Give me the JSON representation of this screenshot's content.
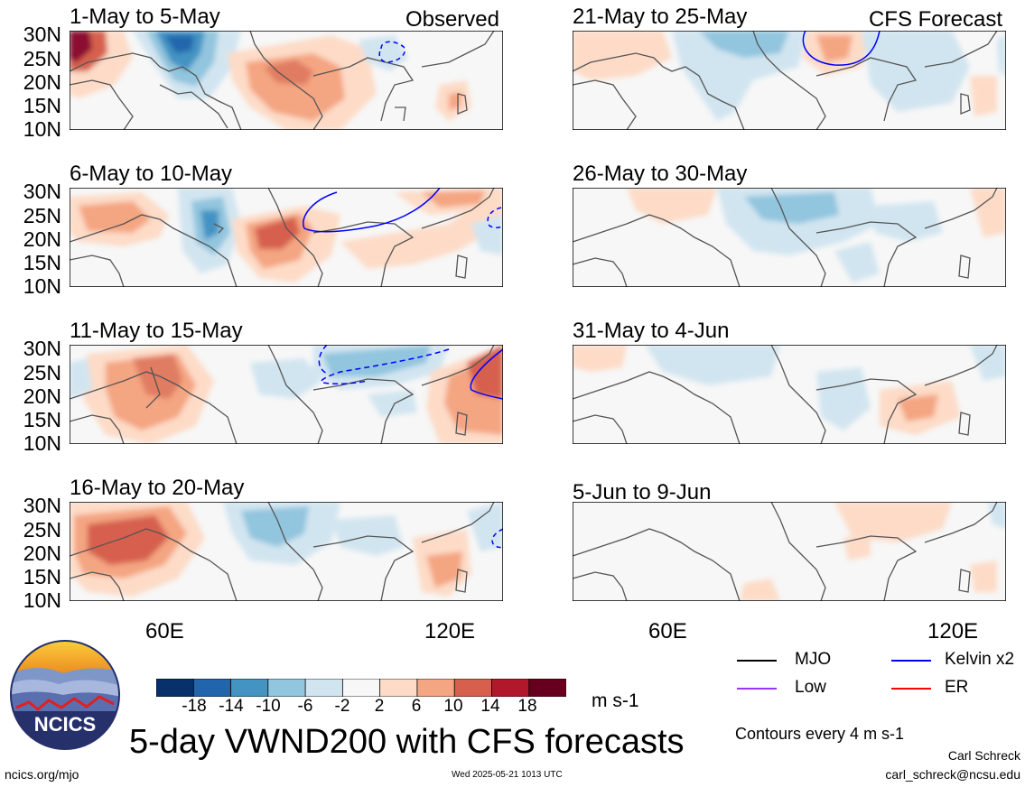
{
  "panels": {
    "left": [
      {
        "title": "1-May to 5-May",
        "label": "Observed"
      },
      {
        "title": "6-May to 10-May",
        "label": ""
      },
      {
        "title": "11-May to 15-May",
        "label": ""
      },
      {
        "title": "16-May to 20-May",
        "label": ""
      }
    ],
    "right": [
      {
        "title": "21-May to 25-May",
        "label": "CFS Forecast"
      },
      {
        "title": "26-May to 30-May",
        "label": ""
      },
      {
        "title": "31-May to 4-Jun",
        "label": ""
      },
      {
        "title": "5-Jun to 9-Jun",
        "label": ""
      }
    ]
  },
  "lat_labels": [
    "30N",
    "25N",
    "20N",
    "15N",
    "10N"
  ],
  "lon_labels": [
    "60E",
    "120E"
  ],
  "colorbar": {
    "colors": [
      "#08306b",
      "#2166ac",
      "#4393c3",
      "#92c5de",
      "#d1e5f0",
      "#f7f7f7",
      "#fddbc7",
      "#f4a582",
      "#d6604d",
      "#b2182b",
      "#67001f"
    ],
    "labels": [
      "-18",
      "-14",
      "-10",
      "-6",
      "-2",
      "2",
      "6",
      "10",
      "14",
      "18"
    ],
    "units": "m s-1"
  },
  "legend": {
    "items": [
      {
        "name": "MJO",
        "color": "#000000"
      },
      {
        "name": "Kelvin x2",
        "color": "#0000ff"
      },
      {
        "name": "Low",
        "color": "#9933ff"
      },
      {
        "name": "ER",
        "color": "#ff0000"
      }
    ],
    "contours_note": "Contours every 4 m s-1"
  },
  "logo_text": "NCICS",
  "main_title": "5-day VWND200 with CFS forecasts",
  "footer": {
    "left": "ncics.org/mjo",
    "center": "Wed 2025-05-21 1013 UTC",
    "author": "Carl Schreck",
    "email": "carl_schreck@ncsu.edu"
  }
}
